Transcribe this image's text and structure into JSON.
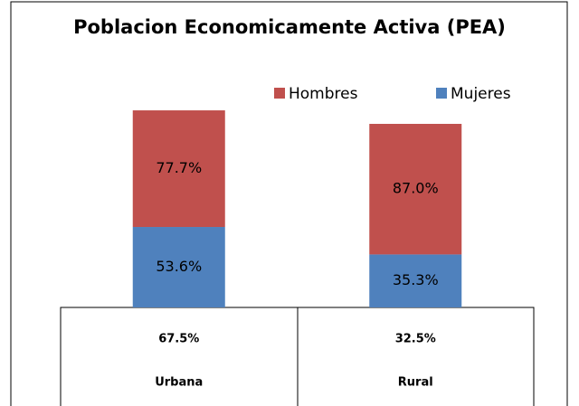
{
  "chart_data": {
    "type": "stacked_bar",
    "title": "Poblacion Economicamente Activa (PEA)",
    "categories": [
      "Urbana",
      "Rural"
    ],
    "series": [
      {
        "name": "Mujeres",
        "color": "#4f81bd",
        "values": [
          53.6,
          35.3
        ],
        "value_labels": [
          "53.6%",
          "35.3%"
        ]
      },
      {
        "name": "Hombres",
        "color": "#c0504d",
        "values": [
          77.7,
          87.0
        ],
        "value_labels": [
          "77.7%",
          "87.0%"
        ]
      }
    ],
    "data_table": [
      "67.5%",
      "32.5%"
    ],
    "legend": "top-right"
  }
}
